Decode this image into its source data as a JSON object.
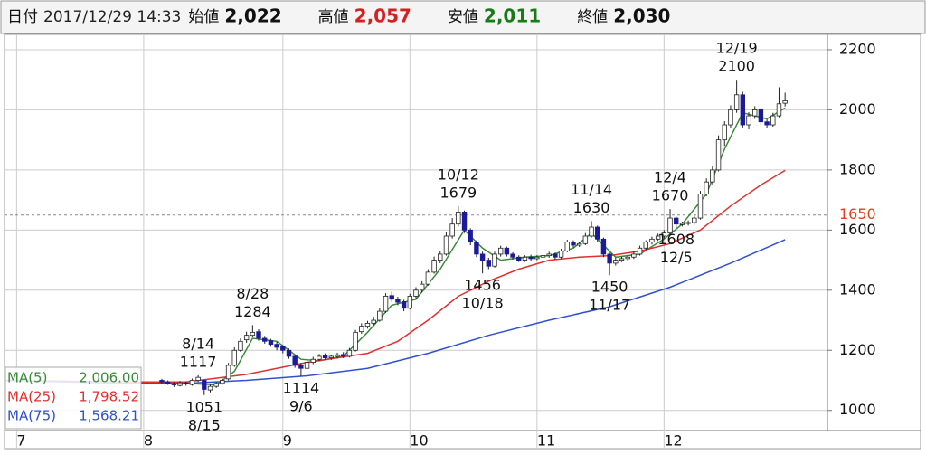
{
  "header": [
    {
      "label": "日付",
      "value": "2017/12/29 14:33",
      "color": "#222222"
    },
    {
      "label": "始値",
      "value": "2,022",
      "color": "#111111"
    },
    {
      "label": "高値",
      "value": "2,057",
      "color": "#d42020"
    },
    {
      "label": "安値",
      "value": "2,011",
      "color": "#1a7a1a"
    },
    {
      "label": "終値",
      "value": "2,030",
      "color": "#111111"
    }
  ],
  "chart_data": {
    "type": "candlestick",
    "xlim": [
      0,
      136
    ],
    "xticks": [
      {
        "value": 2,
        "label": "7"
      },
      {
        "value": 23,
        "label": "8"
      },
      {
        "value": 46,
        "label": "9"
      },
      {
        "value": 67,
        "label": "10"
      },
      {
        "value": 88,
        "label": "11"
      },
      {
        "value": 109,
        "label": "12"
      }
    ],
    "ylim": [
      933,
      2251
    ],
    "yticks": [
      1000,
      1200,
      1400,
      1600,
      1800,
      2000,
      2200
    ],
    "ref_line": 1650,
    "ref_color": "#e0401a",
    "grid": true,
    "up_color": "#ffffff",
    "down_color": "#1a1a9a",
    "candles": {
      "x": [
        26,
        27,
        28,
        29,
        30,
        31,
        32,
        33,
        34,
        35,
        36,
        37,
        38,
        39,
        40,
        41,
        42,
        43,
        44,
        45,
        46,
        47,
        48,
        49,
        50,
        51,
        52,
        53,
        54,
        55,
        56,
        57,
        58,
        59,
        60,
        61,
        62,
        63,
        64,
        65,
        66,
        67,
        68,
        69,
        70,
        71,
        72,
        73,
        74,
        75,
        76,
        77,
        78,
        79,
        80,
        81,
        82,
        83,
        84,
        85,
        86,
        87,
        88,
        89,
        90,
        91,
        92,
        93,
        94,
        95,
        96,
        97,
        98,
        99,
        100,
        101,
        102,
        103,
        104,
        105,
        106,
        107,
        108,
        109,
        110,
        111,
        112,
        113,
        114,
        115,
        116,
        117,
        118,
        119,
        120,
        121,
        122,
        123,
        124,
        125,
        126,
        127,
        128,
        129
      ],
      "open": [
        1100,
        1095,
        1088,
        1083,
        1092,
        1086,
        1100,
        1100,
        1068,
        1080,
        1090,
        1105,
        1150,
        1200,
        1235,
        1250,
        1262,
        1240,
        1232,
        1220,
        1212,
        1200,
        1180,
        1150,
        1140,
        1160,
        1170,
        1182,
        1175,
        1180,
        1186,
        1180,
        1200,
        1262,
        1280,
        1290,
        1300,
        1330,
        1382,
        1370,
        1362,
        1340,
        1380,
        1400,
        1420,
        1460,
        1500,
        1520,
        1580,
        1620,
        1660,
        1600,
        1560,
        1520,
        1500,
        1480,
        1520,
        1540,
        1520,
        1510,
        1500,
        1510,
        1505,
        1510,
        1515,
        1520,
        1510,
        1530,
        1560,
        1550,
        1555,
        1580,
        1610,
        1570,
        1520,
        1490,
        1500,
        1505,
        1510,
        1520,
        1540,
        1560,
        1570,
        1580,
        1590,
        1640,
        1618,
        1622,
        1625,
        1640,
        1720,
        1760,
        1800,
        1900,
        1950,
        2000,
        2050,
        1950,
        1980,
        2000,
        1960,
        1950,
        1980,
        2022
      ],
      "high": [
        1105,
        1100,
        1095,
        1098,
        1097,
        1106,
        1117,
        1102,
        1086,
        1095,
        1106,
        1158,
        1210,
        1240,
        1262,
        1284,
        1270,
        1248,
        1238,
        1228,
        1218,
        1206,
        1186,
        1158,
        1168,
        1178,
        1188,
        1190,
        1186,
        1192,
        1194,
        1208,
        1268,
        1290,
        1298,
        1312,
        1340,
        1390,
        1395,
        1378,
        1368,
        1388,
        1410,
        1430,
        1470,
        1512,
        1532,
        1592,
        1640,
        1679,
        1665,
        1606,
        1566,
        1528,
        1508,
        1528,
        1548,
        1545,
        1526,
        1516,
        1516,
        1518,
        1516,
        1522,
        1528,
        1525,
        1538,
        1568,
        1566,
        1562,
        1590,
        1630,
        1615,
        1575,
        1525,
        1508,
        1512,
        1516,
        1528,
        1548,
        1566,
        1578,
        1588,
        1600,
        1670,
        1645,
        1628,
        1632,
        1648,
        1730,
        1772,
        1812,
        1915,
        1962,
        2015,
        2100,
        2060,
        1992,
        2012,
        2008,
        1968,
        1990,
        2075,
        2057
      ],
      "low": [
        1088,
        1085,
        1078,
        1080,
        1082,
        1082,
        1095,
        1051,
        1060,
        1075,
        1085,
        1100,
        1145,
        1195,
        1225,
        1245,
        1232,
        1222,
        1212,
        1200,
        1190,
        1172,
        1142,
        1114,
        1135,
        1154,
        1164,
        1168,
        1168,
        1172,
        1174,
        1176,
        1196,
        1255,
        1272,
        1282,
        1295,
        1325,
        1362,
        1350,
        1330,
        1336,
        1372,
        1392,
        1415,
        1455,
        1490,
        1515,
        1572,
        1612,
        1590,
        1550,
        1510,
        1456,
        1470,
        1475,
        1512,
        1512,
        1502,
        1494,
        1494,
        1498,
        1500,
        1504,
        1508,
        1502,
        1505,
        1526,
        1542,
        1544,
        1550,
        1575,
        1562,
        1510,
        1450,
        1482,
        1494,
        1498,
        1504,
        1515,
        1534,
        1552,
        1564,
        1572,
        1585,
        1608,
        1612,
        1615,
        1618,
        1635,
        1712,
        1752,
        1795,
        1880,
        1940,
        1990,
        1940,
        1935,
        1970,
        1950,
        1940,
        1944,
        1975,
        2011
      ],
      "close": [
        1095,
        1090,
        1085,
        1092,
        1088,
        1100,
        1110,
        1070,
        1080,
        1090,
        1100,
        1150,
        1200,
        1230,
        1250,
        1260,
        1240,
        1230,
        1220,
        1210,
        1200,
        1180,
        1150,
        1140,
        1160,
        1170,
        1180,
        1175,
        1180,
        1185,
        1180,
        1200,
        1260,
        1280,
        1290,
        1300,
        1330,
        1380,
        1370,
        1360,
        1340,
        1380,
        1400,
        1420,
        1460,
        1500,
        1520,
        1580,
        1620,
        1660,
        1600,
        1560,
        1520,
        1500,
        1480,
        1520,
        1540,
        1520,
        1510,
        1500,
        1510,
        1505,
        1510,
        1515,
        1520,
        1510,
        1530,
        1560,
        1550,
        1555,
        1580,
        1610,
        1570,
        1520,
        1490,
        1500,
        1505,
        1510,
        1520,
        1540,
        1560,
        1570,
        1580,
        1590,
        1640,
        1620,
        1622,
        1625,
        1640,
        1720,
        1760,
        1800,
        1900,
        1950,
        2000,
        2050,
        1950,
        1980,
        2000,
        1960,
        1950,
        1980,
        2020,
        2030
      ]
    },
    "series": [
      {
        "name": "MA(5)",
        "color": "#3a8a3a",
        "legend_value": {
          "value": 2006,
          "label": "2,006.00"
        },
        "x": [
          30,
          35,
          38,
          41,
          45,
          49,
          52,
          56,
          60,
          64,
          68,
          72,
          76,
          79,
          82,
          86,
          90,
          94,
          97,
          101,
          105,
          109,
          112,
          116,
          119,
          122,
          126,
          129
        ],
        "values": [
          1090,
          1085,
          1130,
          1240,
          1230,
          1170,
          1165,
          1180,
          1260,
          1350,
          1370,
          1470,
          1600,
          1540,
          1500,
          1510,
          1515,
          1540,
          1590,
          1510,
          1520,
          1570,
          1620,
          1720,
          1870,
          1990,
          1970,
          2006
        ]
      },
      {
        "name": "MA(25)",
        "color": "#e03030",
        "legend_value": {
          "value": 1798.52,
          "label": "1,798.52"
        },
        "x": [
          0,
          20,
          30,
          40,
          50,
          55,
          60,
          65,
          70,
          75,
          80,
          85,
          90,
          95,
          100,
          105,
          110,
          115,
          120,
          125,
          129
        ],
        "values": [
          1100,
          1095,
          1095,
          1120,
          1160,
          1175,
          1190,
          1230,
          1300,
          1380,
          1430,
          1470,
          1500,
          1510,
          1515,
          1530,
          1555,
          1600,
          1680,
          1750,
          1798.52
        ]
      },
      {
        "name": "MA(75)",
        "color": "#3050d0",
        "legend_value": {
          "value": 1568.21,
          "label": "1,568.21"
        },
        "x": [
          0,
          20,
          30,
          40,
          50,
          60,
          70,
          80,
          90,
          100,
          110,
          120,
          129
        ],
        "values": [
          1100,
          1090,
          1090,
          1100,
          1115,
          1140,
          1190,
          1250,
          1300,
          1345,
          1410,
          1490,
          1568.21
        ]
      }
    ],
    "annotations": [
      {
        "date": "8/14",
        "price": 1117,
        "kind": "high"
      },
      {
        "date": "8/15",
        "price": 1051,
        "kind": "low"
      },
      {
        "date": "8/28",
        "price": 1284,
        "kind": "high"
      },
      {
        "date": "9/6",
        "price": 1114,
        "kind": "low"
      },
      {
        "date": "10/12",
        "price": 1679,
        "kind": "high"
      },
      {
        "date": "10/18",
        "price": 1456,
        "kind": "low"
      },
      {
        "date": "11/14",
        "price": 1630,
        "kind": "high"
      },
      {
        "date": "11/17",
        "price": 1450,
        "kind": "low"
      },
      {
        "date": "12/4",
        "price": 1670,
        "kind": "high"
      },
      {
        "date": "12/5",
        "price": 1608,
        "kind": "low"
      },
      {
        "date": "12/19",
        "price": 2100,
        "kind": "high"
      }
    ]
  }
}
